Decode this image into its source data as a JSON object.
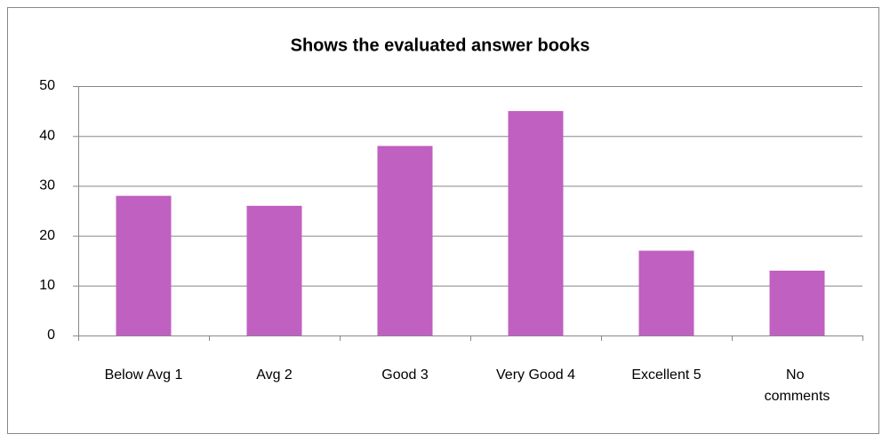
{
  "chart_data": {
    "type": "bar",
    "title": "Shows the evaluated answer books",
    "categories": [
      "Below Avg 1",
      "Avg 2",
      "Good 3",
      "Very Good 4",
      "Excellent 5",
      "No comments"
    ],
    "values": [
      28,
      26,
      38,
      45,
      17,
      13
    ],
    "color": "#c060c0",
    "ylim": [
      0,
      50
    ],
    "yticks": [
      0,
      10,
      20,
      30,
      40,
      50
    ],
    "grid": true
  }
}
